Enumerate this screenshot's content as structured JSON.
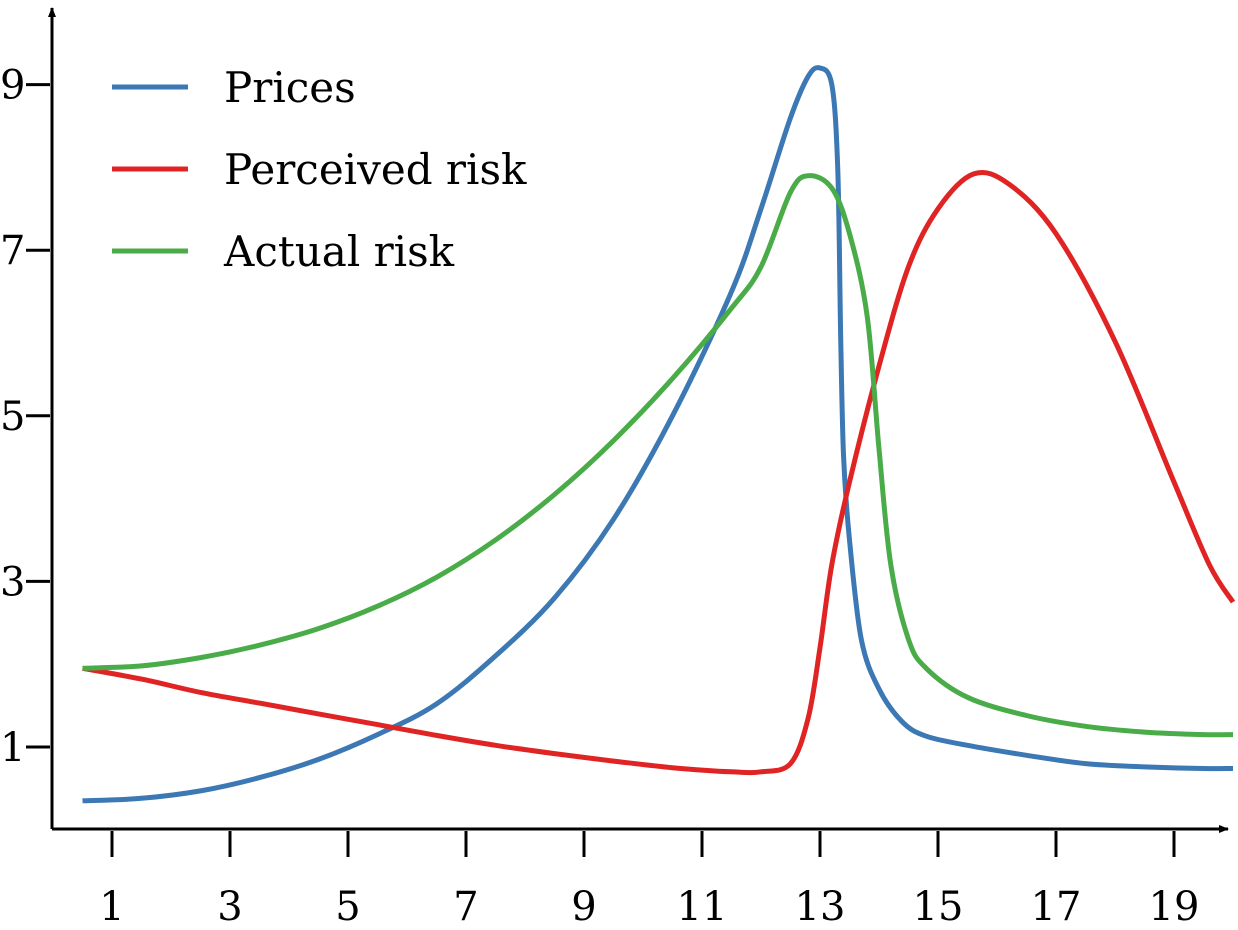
{
  "chart_data": {
    "type": "line",
    "title": "",
    "xlabel": "",
    "ylabel": "",
    "xlim": [
      0.5,
      20.0
    ],
    "ylim": [
      0.0,
      10.0
    ],
    "x_ticks": [
      1,
      3,
      5,
      7,
      9,
      11,
      13,
      15,
      17,
      19
    ],
    "x_tick_labels": [
      "1",
      "3",
      "5",
      "7",
      "9",
      "11",
      "13",
      "15",
      "17",
      "19"
    ],
    "y_ticks": [
      1,
      3,
      5,
      7,
      9
    ],
    "y_tick_labels": [
      "1",
      "3",
      "5",
      "7",
      "9"
    ],
    "grid": false,
    "legend_position": "top-left",
    "series": [
      {
        "name": "Prices",
        "color": "#3b78b4",
        "points": [
          [
            0.5,
            0.35
          ],
          [
            1.5,
            0.38
          ],
          [
            2.5,
            0.47
          ],
          [
            3.5,
            0.63
          ],
          [
            4.5,
            0.85
          ],
          [
            5.5,
            1.15
          ],
          [
            6.5,
            1.52
          ],
          [
            7.5,
            2.1
          ],
          [
            8.5,
            2.8
          ],
          [
            9.5,
            3.75
          ],
          [
            10.5,
            5.0
          ],
          [
            11.5,
            6.5
          ],
          [
            12.0,
            7.5
          ],
          [
            12.5,
            8.6
          ],
          [
            12.8,
            9.1
          ],
          [
            13.0,
            9.2
          ],
          [
            13.2,
            9.0
          ],
          [
            13.3,
            8.0
          ],
          [
            13.35,
            6.0
          ],
          [
            13.4,
            4.5
          ],
          [
            13.5,
            3.5
          ],
          [
            13.7,
            2.3
          ],
          [
            14.0,
            1.7
          ],
          [
            14.4,
            1.3
          ],
          [
            14.8,
            1.13
          ],
          [
            15.5,
            1.02
          ],
          [
            16.5,
            0.9
          ],
          [
            17.5,
            0.8
          ],
          [
            18.5,
            0.76
          ],
          [
            19.5,
            0.74
          ],
          [
            20.0,
            0.74
          ]
        ]
      },
      {
        "name": "Perceived risk",
        "color": "#e02424",
        "points": [
          [
            0.5,
            1.95
          ],
          [
            1.5,
            1.82
          ],
          [
            2.5,
            1.66
          ],
          [
            3.5,
            1.53
          ],
          [
            4.5,
            1.4
          ],
          [
            5.5,
            1.27
          ],
          [
            6.5,
            1.14
          ],
          [
            7.5,
            1.02
          ],
          [
            8.5,
            0.92
          ],
          [
            9.5,
            0.83
          ],
          [
            10.5,
            0.75
          ],
          [
            11.5,
            0.7
          ],
          [
            12.0,
            0.7
          ],
          [
            12.5,
            0.8
          ],
          [
            12.8,
            1.35
          ],
          [
            13.0,
            2.2
          ],
          [
            13.2,
            3.2
          ],
          [
            13.5,
            4.2
          ],
          [
            14.0,
            5.6
          ],
          [
            14.5,
            6.8
          ],
          [
            15.0,
            7.5
          ],
          [
            15.6,
            7.92
          ],
          [
            16.2,
            7.8
          ],
          [
            17.0,
            7.2
          ],
          [
            18.0,
            5.9
          ],
          [
            19.0,
            4.2
          ],
          [
            19.6,
            3.2
          ],
          [
            20.0,
            2.75
          ]
        ]
      },
      {
        "name": "Actual risk",
        "color": "#4aac48",
        "points": [
          [
            0.5,
            1.95
          ],
          [
            1.5,
            1.98
          ],
          [
            2.5,
            2.08
          ],
          [
            3.5,
            2.23
          ],
          [
            4.5,
            2.43
          ],
          [
            5.5,
            2.7
          ],
          [
            6.5,
            3.05
          ],
          [
            7.5,
            3.5
          ],
          [
            8.5,
            4.05
          ],
          [
            9.5,
            4.7
          ],
          [
            10.5,
            5.45
          ],
          [
            11.5,
            6.3
          ],
          [
            12.0,
            6.8
          ],
          [
            12.5,
            7.7
          ],
          [
            12.8,
            7.9
          ],
          [
            13.2,
            7.75
          ],
          [
            13.5,
            7.2
          ],
          [
            13.8,
            6.2
          ],
          [
            14.0,
            4.6
          ],
          [
            14.2,
            3.2
          ],
          [
            14.5,
            2.3
          ],
          [
            14.8,
            1.95
          ],
          [
            15.5,
            1.6
          ],
          [
            16.5,
            1.38
          ],
          [
            17.5,
            1.25
          ],
          [
            18.5,
            1.18
          ],
          [
            19.5,
            1.15
          ],
          [
            20.0,
            1.15
          ]
        ]
      }
    ]
  }
}
